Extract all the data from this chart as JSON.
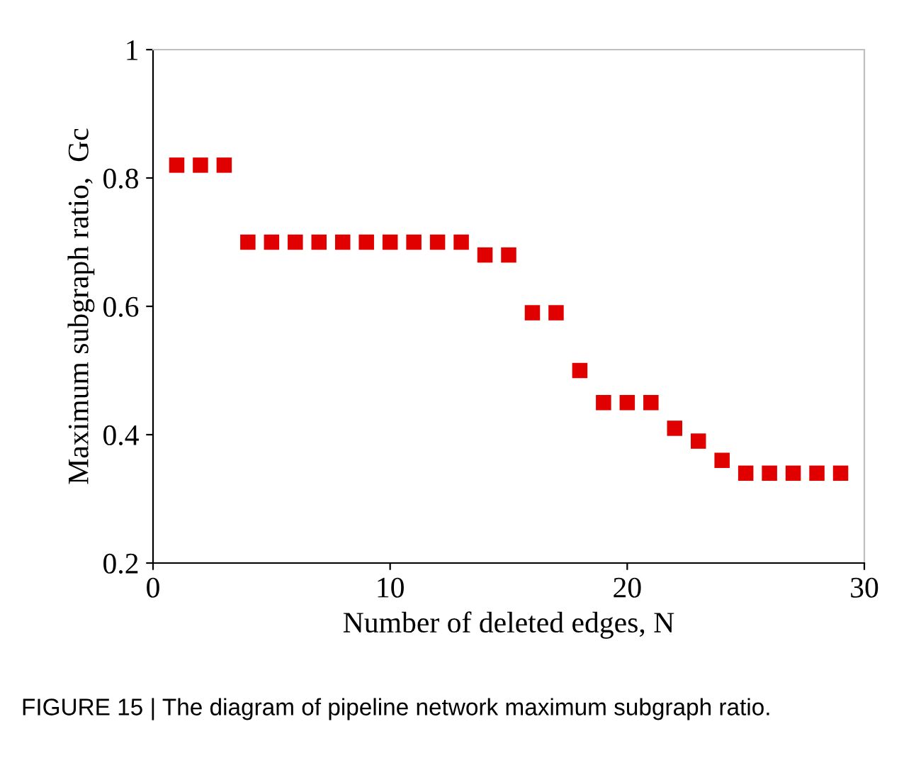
{
  "chart_data": {
    "type": "scatter",
    "xlabel": "Number of deleted edges, N",
    "ylabel": "Maximum subgraph ratio,  Gc",
    "x": [
      1,
      2,
      3,
      4,
      5,
      6,
      7,
      8,
      9,
      10,
      11,
      12,
      13,
      14,
      15,
      16,
      17,
      18,
      19,
      20,
      21,
      22,
      23,
      24,
      25,
      26,
      27,
      28,
      29
    ],
    "series": [
      {
        "color": "#e00000",
        "values": [
          0.82,
          0.82,
          0.82,
          0.7,
          0.7,
          0.7,
          0.7,
          0.7,
          0.7,
          0.7,
          0.7,
          0.7,
          0.7,
          0.68,
          0.68,
          0.59,
          0.59,
          0.5,
          0.45,
          0.45,
          0.45,
          0.41,
          0.39,
          0.36,
          0.34,
          0.34,
          0.34,
          0.34,
          0.34
        ]
      }
    ],
    "marker": "square",
    "xlim": [
      0,
      30
    ],
    "xticks": [
      0,
      10,
      20,
      30
    ],
    "ylim": [
      0.2,
      1
    ],
    "yticks": [
      0.2,
      0.4,
      0.6,
      0.8,
      1
    ],
    "grid": false,
    "legend": false,
    "annotations": [
      "FIGURE 15 | The diagram of pipeline network maximum subgraph ratio."
    ]
  }
}
